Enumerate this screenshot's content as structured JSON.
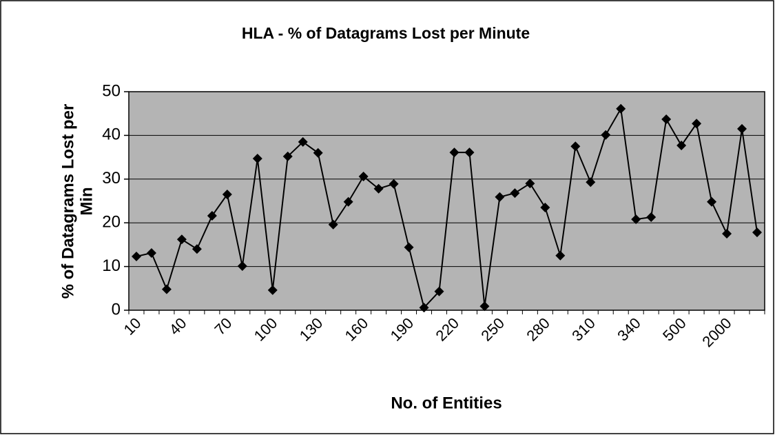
{
  "chart_data": {
    "type": "line",
    "title": "HLA - % of Datagrams Lost per Minute",
    "xlabel": "No. of Entities",
    "ylabel": [
      "% of Datagrams Lost per",
      "Min"
    ],
    "categories": [
      "10",
      null,
      null,
      "40",
      null,
      null,
      "70",
      null,
      null,
      "100",
      null,
      null,
      "130",
      null,
      null,
      "160",
      null,
      null,
      "190",
      null,
      null,
      "220",
      null,
      null,
      "250",
      null,
      null,
      "280",
      null,
      null,
      "310",
      null,
      null,
      "340",
      null,
      null,
      "500",
      null,
      null,
      "2000",
      null,
      null
    ],
    "series": [
      {
        "name": "% of Datagrams Lost per Minute",
        "color": "#000000",
        "values": [
          12.3,
          13.1,
          4.8,
          16.2,
          14.0,
          21.6,
          26.5,
          10.1,
          34.7,
          4.6,
          35.2,
          38.5,
          36.0,
          19.6,
          24.8,
          30.6,
          27.8,
          28.9,
          14.4,
          0.6,
          4.3,
          36.1,
          36.1,
          0.9,
          25.9,
          26.8,
          29.0,
          23.5,
          12.5,
          37.5,
          29.3,
          40.1,
          46.1,
          20.8,
          21.3,
          43.7,
          37.7,
          42.7,
          24.8,
          17.5,
          41.5,
          17.8
        ]
      }
    ],
    "ylim": [
      0,
      50
    ],
    "yticks": [
      0,
      10,
      20,
      30,
      40,
      50
    ],
    "grid": true,
    "plot_color": "#b4b4b4"
  }
}
